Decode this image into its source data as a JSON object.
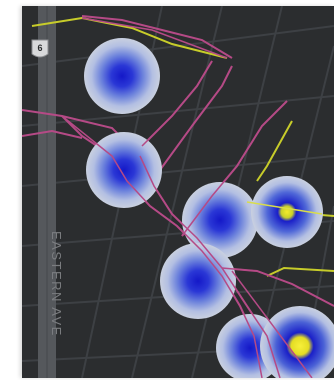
{
  "map": {
    "street_label": "EASTERN AVE",
    "route_shield_number": "6",
    "colors": {
      "background": "#2b2d2f",
      "road_gray": "#4d5054",
      "highway_pink": "#b54a86",
      "road_yellow": "#c7cc2a",
      "heat_outer": "#c9d0e0",
      "heat_mid": "#5a6fd8",
      "heat_core": "#1a1fc8",
      "heat_peak": "#f2ea2a"
    },
    "heat_spots": [
      {
        "intensity": "medium"
      },
      {
        "intensity": "medium"
      },
      {
        "intensity": "medium"
      },
      {
        "intensity": "high"
      },
      {
        "intensity": "medium"
      },
      {
        "intensity": "very-high"
      }
    ]
  }
}
